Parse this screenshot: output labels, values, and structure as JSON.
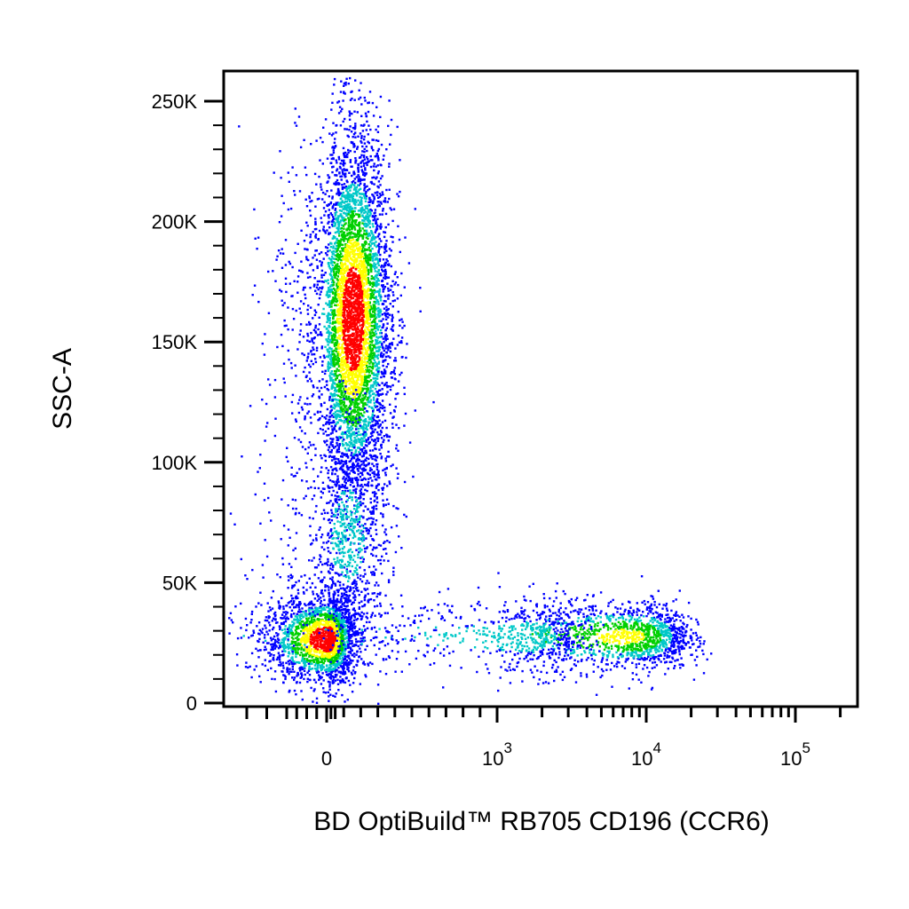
{
  "chart_data": {
    "type": "scatter",
    "title": "",
    "xlabel": "BD OptiBuild™ RB705 CD196 (CCR6)",
    "ylabel": "SSC-A",
    "x_scale": "biexponential",
    "y_scale": "linear",
    "ylim": [
      0,
      260000
    ],
    "xlim": [
      -200,
      100000
    ],
    "grid": false,
    "density_coloring": true,
    "colors": {
      "low": "#0000ff",
      "mid_low": "#00c8c8",
      "mid": "#00d000",
      "mid_high": "#ffff00",
      "high": "#ff0000",
      "axes": "#000000",
      "background": "#ffffff"
    },
    "x_ticks": [
      {
        "value": 0,
        "label": "0"
      },
      {
        "value": 1000,
        "label": "10",
        "exp": "3"
      },
      {
        "value": 10000,
        "label": "10",
        "exp": "4"
      },
      {
        "value": 100000,
        "label": "10",
        "exp": "5"
      }
    ],
    "y_ticks": [
      {
        "value": 0,
        "label": "0"
      },
      {
        "value": 50000,
        "label": "50K"
      },
      {
        "value": 100000,
        "label": "100K"
      },
      {
        "value": 150000,
        "label": "150K"
      },
      {
        "value": 200000,
        "label": "200K"
      },
      {
        "value": 250000,
        "label": "250K"
      }
    ],
    "populations": [
      {
        "name": "",
        "x_center": 0,
        "x_spread": 80,
        "y_center": 27000,
        "y_spread": 9000,
        "events": 2200,
        "peak_density": "high"
      },
      {
        "name": "",
        "x_center": 150,
        "x_spread": 110,
        "y_center": 160000,
        "y_spread": 38000,
        "events": 5200,
        "peak_density": "high"
      },
      {
        "name": "",
        "x_center": 120,
        "x_spread": 120,
        "y_center": 70000,
        "y_spread": 25000,
        "events": 900,
        "peak_density": "low"
      },
      {
        "name": "",
        "x_center": 7000,
        "x_spread": 6000,
        "y_center": 28000,
        "y_spread": 7000,
        "events": 1500,
        "peak_density": "mid"
      },
      {
        "name": "",
        "x_center": 1500,
        "x_spread": 1200,
        "y_center": 28000,
        "y_spread": 8000,
        "events": 700,
        "peak_density": "low"
      }
    ]
  }
}
